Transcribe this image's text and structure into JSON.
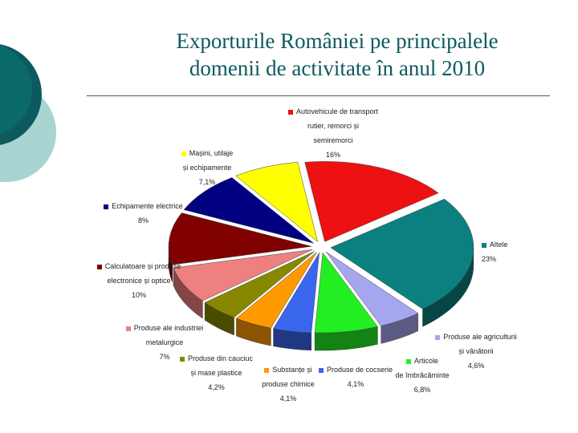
{
  "title": {
    "line1": "Exporturile României pe principalele",
    "line2": "domenii de activitate în anul 2010"
  },
  "chart_data": {
    "type": "pie",
    "title": "Exporturile României pe principalele domenii de activitate în anul 2010",
    "unit": "%",
    "style": "3d-exploded",
    "slices": [
      {
        "name": "Autovehicule de transport rutier, remorci și semiremorci",
        "label_lines": [
          "Autovehicule de transport",
          "rutier, remorci și",
          "semiremorci"
        ],
        "value": 16,
        "value_text": "16%",
        "color": "#ee1111"
      },
      {
        "name": "Altele",
        "label_lines": [
          "Altele"
        ],
        "value": 23,
        "value_text": "23%",
        "color": "#0b8080"
      },
      {
        "name": "Produse ale agriculturii și vânătorii",
        "label_lines": [
          "Produse ale agriculturii",
          "și vânătorii"
        ],
        "value": 4.6,
        "value_text": "4,6%",
        "color": "#a6a6f0"
      },
      {
        "name": "Articole de îmbrăcăminte",
        "label_lines": [
          "Articole",
          "de îmbrăcăminte"
        ],
        "value": 6.8,
        "value_text": "6,8%",
        "color": "#22ee22"
      },
      {
        "name": "Produse de cocserie",
        "label_lines": [
          "Produse de cocserie"
        ],
        "value": 4.1,
        "value_text": "4,1%",
        "color": "#3a66ee"
      },
      {
        "name": "Substanțe și produse chimice",
        "label_lines": [
          "Substanțe și",
          "produse chimice"
        ],
        "value": 4.1,
        "value_text": "4,1%",
        "color": "#ff9900"
      },
      {
        "name": "Produse din cauciuc și mase plastice",
        "label_lines": [
          "Produse din cauciuc",
          "și mase plastice"
        ],
        "value": 4.2,
        "value_text": "4,2%",
        "color": "#888800"
      },
      {
        "name": "Produse ale industriei metalurgice",
        "label_lines": [
          "Produse ale industriei",
          "metalurgice"
        ],
        "value": 7,
        "value_text": "7%",
        "color": "#ee8080"
      },
      {
        "name": "Calculatoare și produse electronice și optice",
        "label_lines": [
          "Calculatoare și produse",
          "electronice și optice"
        ],
        "value": 10,
        "value_text": "10%",
        "color": "#800000"
      },
      {
        "name": "Echipamente electrice",
        "label_lines": [
          "Echipamente electrice"
        ],
        "value": 8,
        "value_text": "8%",
        "color": "#000080"
      },
      {
        "name": "Mașini, utilaje și echipamente",
        "label_lines": [
          "Mașini, utilaje",
          "și echipamente"
        ],
        "value": 7.1,
        "value_text": "7,1%",
        "color": "#ffff00"
      }
    ]
  }
}
